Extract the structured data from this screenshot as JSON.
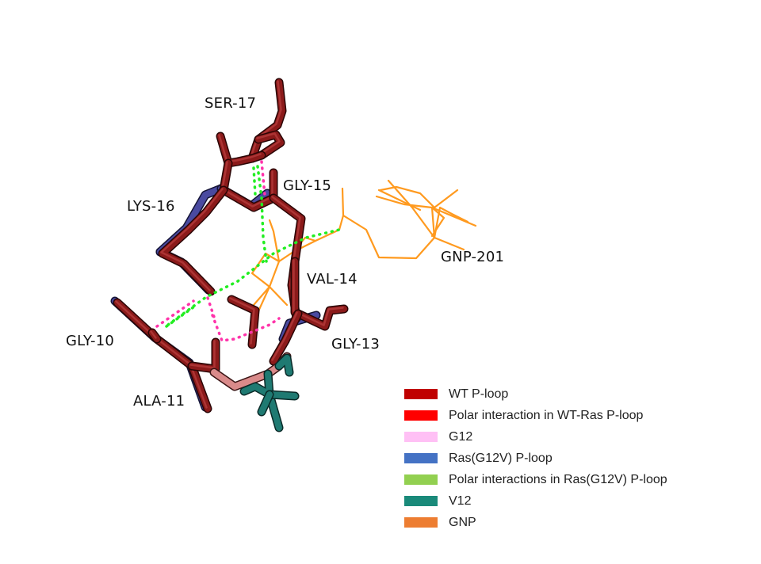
{
  "residues": [
    {
      "id": "ser17",
      "label": "SER-17"
    },
    {
      "id": "gly15",
      "label": "GLY-15"
    },
    {
      "id": "lys16",
      "label": "LYS-16"
    },
    {
      "id": "val14",
      "label": "VAL-14"
    },
    {
      "id": "gly10",
      "label": "GLY-10"
    },
    {
      "id": "gly13",
      "label": "GLY-13"
    },
    {
      "id": "ala11",
      "label": "ALA-11"
    },
    {
      "id": "gnp201",
      "label": "GNP-201"
    }
  ],
  "legend": [
    {
      "label": "WT P-loop",
      "color": "#c00000"
    },
    {
      "label": "Polar interaction in WT-Ras P-loop",
      "color": "#ff0000"
    },
    {
      "label": "G12",
      "color": "#ffc0f5"
    },
    {
      "label": "Ras(G12V) P-loop",
      "color": "#4472c4"
    },
    {
      "label": "Polar interactions in Ras(G12V) P-loop",
      "color": "#92d050"
    },
    {
      "label": "V12",
      "color": "#1a8a7a"
    },
    {
      "label": "GNP",
      "color": "#ed7d31"
    }
  ],
  "colors": {
    "wt_stick": "#8b1a1a",
    "wt_stick_highlight": "#c84a4a",
    "g12_stick": "#d98a8a",
    "v12_stick": "#1f7a72",
    "mutant_stick": "#4a4aa0",
    "gnp_line": "#ff9a1f",
    "polar_wt": "#ff33aa",
    "polar_mut": "#22ee22"
  }
}
